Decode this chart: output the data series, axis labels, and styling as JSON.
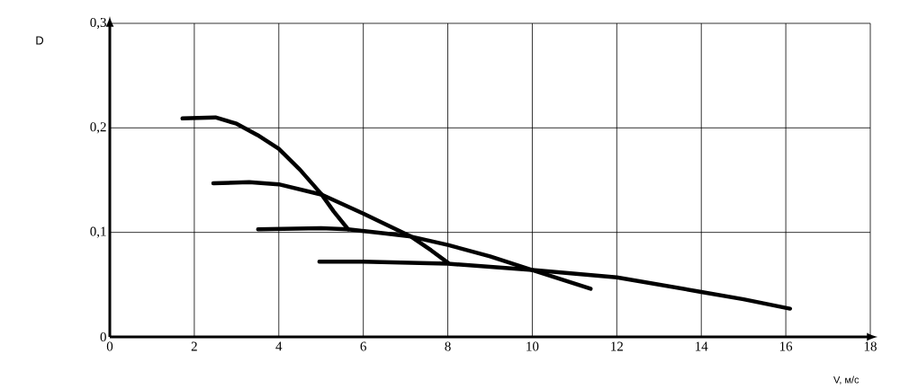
{
  "chart_data": {
    "type": "line",
    "xlabel": "V, м/с",
    "ylabel": "D",
    "xlim": [
      0,
      18
    ],
    "ylim": [
      0,
      0.3
    ],
    "xticks": [
      0,
      2,
      4,
      6,
      8,
      10,
      12,
      14,
      16,
      18
    ],
    "yticks": [
      0,
      {
        "value": 0.1,
        "label": "0,1"
      },
      {
        "value": 0.2,
        "label": "0,2"
      },
      {
        "value": 0.3,
        "label": "0,3"
      }
    ],
    "grid": true,
    "marker": "none",
    "line_style": "solid",
    "series": [
      {
        "color": "#000000",
        "x": [
          1.72,
          2.5,
          3.0,
          3.5,
          4.0,
          4.5,
          5.0,
          5.3,
          5.64
        ],
        "values": [
          0.209,
          0.21,
          0.204,
          0.193,
          0.18,
          0.16,
          0.137,
          0.12,
          0.103
        ]
      },
      {
        "color": "#000000",
        "x": [
          2.45,
          3.3,
          4.0,
          5.02,
          6.0,
          7.13,
          7.6,
          8.0
        ],
        "values": [
          0.147,
          0.148,
          0.146,
          0.136,
          0.118,
          0.096,
          0.083,
          0.071
        ]
      },
      {
        "color": "#000000",
        "x": [
          3.51,
          5.0,
          5.64,
          6.5,
          7.13,
          8.0,
          9.0,
          10.0,
          11.38
        ],
        "values": [
          0.103,
          0.104,
          0.103,
          0.099,
          0.096,
          0.088,
          0.077,
          0.064,
          0.046
        ]
      },
      {
        "color": "#000000",
        "x": [
          4.96,
          6.0,
          8.0,
          10.0,
          12.0,
          14.0,
          15.0,
          16.1
        ],
        "values": [
          0.072,
          0.072,
          0.07,
          0.064,
          0.057,
          0.043,
          0.036,
          0.027
        ]
      }
    ]
  }
}
